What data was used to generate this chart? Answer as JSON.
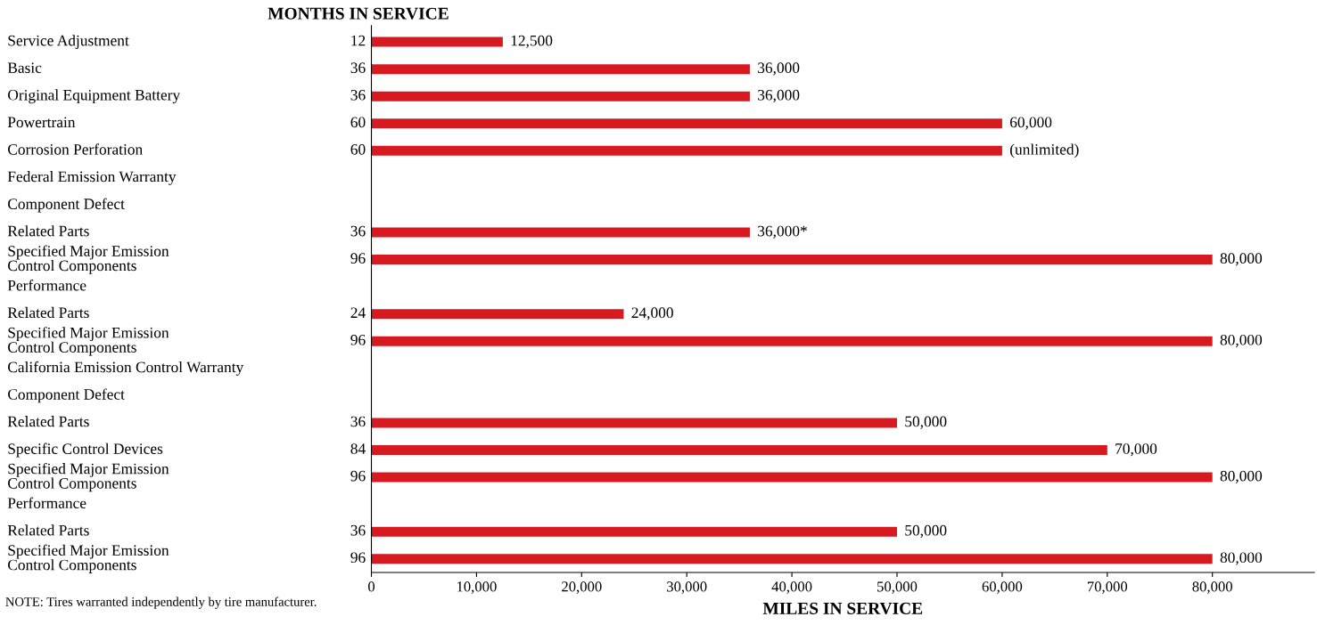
{
  "chart_data": {
    "type": "bar",
    "orientation": "horizontal",
    "y2label": "MONTHS IN SERVICE",
    "xlabel": "MILES IN SERVICE",
    "categories": [
      "Service Adjustment",
      "Basic",
      "Original Equipment Battery",
      "Powertrain",
      "Corrosion Perforation",
      "Federal Emission Warranty",
      "Component Defect",
      "Related Parts",
      "Specified Major Emission\nControl Components",
      "Performance",
      "Related Parts",
      "Specified Major Emission\nControl Components",
      "California Emission Control Warranty",
      "Component Defect",
      "Related Parts",
      "Specific Control Devices",
      "Specified Major Emission\nControl Components",
      "Performance",
      "Related Parts",
      "Specified Major Emission\nControl Components"
    ],
    "y2_categories": [
      "12",
      "36",
      "36",
      "60",
      "60",
      null,
      null,
      "36",
      "96",
      null,
      "24",
      "96",
      null,
      null,
      "36",
      "84",
      "96",
      null,
      "36",
      "96"
    ],
    "values": [
      12500,
      36000,
      36000,
      60000,
      60000,
      null,
      null,
      36000,
      80000,
      null,
      24000,
      80000,
      null,
      null,
      50000,
      70000,
      80000,
      null,
      50000,
      80000
    ],
    "value_labels": [
      "12,500",
      "36,000",
      "36,000",
      "60,000",
      "(unlimited)",
      null,
      null,
      "36,000*",
      "80,000",
      null,
      "24,000",
      "80,000",
      null,
      null,
      "50,000",
      "70,000",
      "80,000",
      null,
      "50,000",
      "80,000"
    ],
    "color": "#d71920",
    "xlim": [
      0,
      89700
    ],
    "xticks": [
      0,
      {
        "value": 10000,
        "label": "10,000"
      },
      {
        "value": 20000,
        "label": "20,000"
      },
      {
        "value": 30000,
        "label": "30,000"
      },
      {
        "value": 40000,
        "label": "40,000"
      },
      {
        "value": 50000,
        "label": "50,000"
      },
      {
        "value": 60000,
        "label": "60,000"
      },
      {
        "value": 70000,
        "label": "70,000"
      },
      {
        "value": 80000,
        "label": "80,000"
      }
    ],
    "grid": false,
    "legend": false,
    "annotations": [
      "NOTE: Tires warranted independently by tire manufacturer."
    ]
  }
}
